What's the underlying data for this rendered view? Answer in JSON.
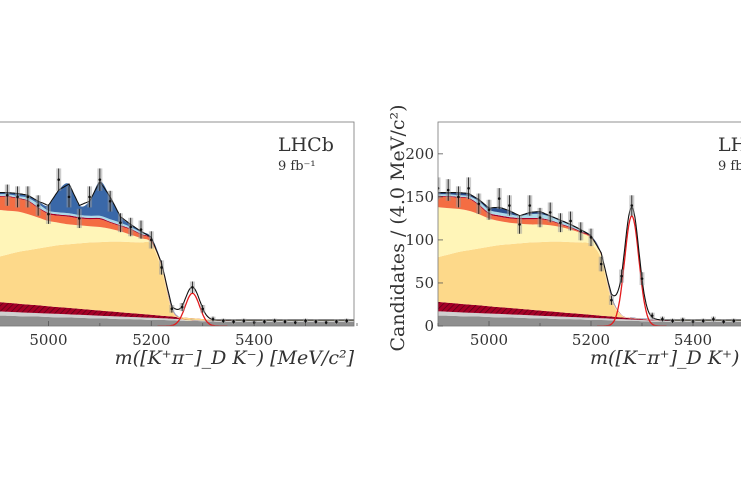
{
  "chart_data": [
    {
      "type": "area",
      "panel": "left",
      "experiment_label": "LHCb",
      "luminosity_label": "9 fb⁻¹",
      "xlabel": "m([K⁺π⁻]_D K⁻) [MeV/c²]",
      "ylabel": "",
      "xlim": [
        4900,
        5600
      ],
      "ylim": [
        0,
        237
      ],
      "xticks": [
        5000,
        5200,
        5400
      ],
      "yticks": [],
      "grid": false,
      "x": [
        4900,
        4920,
        4940,
        4960,
        4980,
        5000,
        5020,
        5040,
        5060,
        5080,
        5100,
        5120,
        5140,
        5160,
        5180,
        5200,
        5220,
        5240,
        5260,
        5280,
        5300,
        5320,
        5340,
        5360,
        5380,
        5400,
        5420,
        5440,
        5460,
        5480,
        5500,
        5520,
        5540,
        5560,
        5580,
        5600
      ],
      "components": [
        {
          "color": "#8f8f8f",
          "hatched": false,
          "top": [
            12,
            12,
            11.5,
            11,
            11,
            10.5,
            10,
            10,
            9.5,
            9,
            9,
            8.5,
            8,
            8,
            7.5,
            7,
            7,
            6.5,
            6,
            6,
            5.5,
            5,
            5,
            5,
            5,
            5,
            5,
            5,
            5,
            5,
            5,
            5,
            5,
            5,
            5,
            5
          ]
        },
        {
          "color": "#cfcfcf",
          "hatched": false,
          "top": [
            17,
            16.5,
            16,
            15.5,
            15,
            14.5,
            14,
            13.5,
            13,
            12.5,
            12,
            11.5,
            11,
            10.5,
            10,
            9.5,
            9,
            8.5,
            8,
            7.5,
            7,
            6.5,
            6,
            6,
            6,
            6,
            6,
            6,
            6,
            6,
            6,
            6,
            6,
            6,
            6,
            6
          ]
        },
        {
          "color": "#a50026",
          "hatched": true,
          "top": [
            28,
            27,
            26,
            25,
            24,
            23,
            22,
            21,
            20,
            19,
            18,
            17,
            16,
            15,
            14,
            13,
            12,
            11,
            10,
            9,
            8,
            7,
            6.5,
            6.2,
            6.2,
            6.2,
            6.2,
            6.2,
            6.2,
            6.2,
            6.2,
            6.2,
            6.2,
            6.2,
            6.2,
            6.2
          ]
        },
        {
          "color": "#fdd98a",
          "hatched": false,
          "top": [
            80,
            83,
            86,
            88,
            90,
            92,
            94,
            95,
            96,
            97,
            97.5,
            98,
            98,
            97.5,
            97,
            95,
            66,
            18,
            8,
            6.5,
            6.3,
            6.3,
            6.3,
            6.3,
            6.3,
            6.3,
            6.3,
            6.3,
            6.3,
            6.3,
            6.3,
            6.3,
            6.3,
            6.3,
            6.3,
            6.3
          ]
        },
        {
          "color": "#fff5b8",
          "hatched": false,
          "top": [
            135,
            134,
            133,
            130,
            126,
            122,
            120,
            118,
            117,
            116,
            115,
            113,
            110,
            106,
            102,
            97,
            69,
            19,
            8.5,
            6.7,
            6.5,
            6.4,
            6.4,
            6.4,
            6.4,
            6.4,
            6.4,
            6.4,
            6.4,
            6.4,
            6.4,
            6.4,
            6.4,
            6.4,
            6.4,
            6.4
          ]
        },
        {
          "color": "#f46d43",
          "hatched": false,
          "top": [
            150,
            150,
            148,
            145,
            137,
            130,
            128,
            127,
            125,
            124,
            124,
            120,
            116,
            112,
            106,
            100,
            71,
            20,
            8.8,
            6.9,
            6.6,
            6.5,
            6.5,
            6.5,
            6.5,
            6.5,
            6.5,
            6.5,
            6.5,
            6.5,
            6.5,
            6.5,
            6.5,
            6.5,
            6.5,
            6.5
          ]
        },
        {
          "color": "#a50026",
          "hatched": false,
          "top": [
            151,
            151,
            149,
            146,
            138,
            131.5,
            129.5,
            128.5,
            126.5,
            125.5,
            125.5,
            121,
            117,
            113,
            107,
            101,
            71.5,
            20.3,
            8.9,
            7,
            6.7,
            6.6,
            6.6,
            6.6,
            6.6,
            6.6,
            6.6,
            6.6,
            6.6,
            6.6,
            6.6,
            6.6,
            6.6,
            6.6,
            6.6,
            6.6
          ]
        },
        {
          "color": "#abd9e9",
          "hatched": false,
          "top": [
            153,
            153,
            151,
            149,
            142,
            134,
            132,
            131,
            129,
            128,
            128,
            124,
            120,
            115,
            109,
            102,
            72,
            21,
            9,
            7.1,
            6.8,
            6.7,
            6.7,
            6.7,
            6.7,
            6.7,
            6.7,
            6.7,
            6.7,
            6.7,
            6.7,
            6.7,
            6.7,
            6.7,
            6.7,
            6.7
          ]
        },
        {
          "color": "#3a68a8",
          "hatched": false,
          "top": [
            155,
            155,
            154,
            152,
            145,
            140,
            158,
            165,
            140,
            145,
            168,
            150,
            127,
            118,
            110,
            103,
            73,
            22,
            9,
            7,
            6.9,
            6.8,
            6.8,
            6.8,
            6.8,
            6.8,
            6.8,
            6.8,
            6.8,
            6.8,
            6.8,
            6.8,
            6.8,
            6.8,
            6.8,
            6.8
          ]
        }
      ],
      "signal": {
        "color": "#e31a1c",
        "mean": 5280,
        "sigma": 14,
        "peak": 38
      },
      "data_points": [
        158,
        152,
        150,
        150,
        140,
        130,
        170,
        150,
        125,
        150,
        170,
        145,
        120,
        115,
        112,
        100,
        68,
        20,
        22,
        45,
        20,
        8,
        6,
        5,
        6,
        4,
        5,
        6,
        5,
        4,
        6,
        5,
        4,
        5,
        6,
        5
      ]
    },
    {
      "type": "area",
      "panel": "right",
      "experiment_label": "LH",
      "luminosity_label": "9 fb",
      "xlabel": "m([K⁻π⁺]_D K⁺) [M",
      "ylabel": "Candidates / (4.0 MeV/c²)",
      "xlim": [
        4900,
        5600
      ],
      "ylim": [
        0,
        237
      ],
      "xticks": [
        5000,
        5200,
        5400
      ],
      "yticks": [
        0,
        50,
        100,
        150,
        200
      ],
      "grid": false,
      "x": [
        4900,
        4920,
        4940,
        4960,
        4980,
        5000,
        5020,
        5040,
        5060,
        5080,
        5100,
        5120,
        5140,
        5160,
        5180,
        5200,
        5220,
        5240,
        5260,
        5280,
        5300,
        5320,
        5340,
        5360,
        5380,
        5400,
        5420,
        5440,
        5460,
        5480,
        5500,
        5520,
        5540,
        5560,
        5580,
        5600
      ],
      "components": [
        {
          "color": "#8f8f8f",
          "hatched": false,
          "top": [
            12,
            12,
            11.5,
            11,
            11,
            10.5,
            10,
            10,
            9.5,
            9,
            9,
            8.5,
            8,
            8,
            7.5,
            7,
            7,
            6.5,
            6,
            6,
            5.5,
            5,
            5,
            5,
            5,
            5,
            5,
            5,
            5,
            5,
            5,
            5,
            5,
            5,
            5,
            5
          ]
        },
        {
          "color": "#cfcfcf",
          "hatched": false,
          "top": [
            17,
            16.5,
            16,
            15.5,
            15,
            14.5,
            14,
            13.5,
            13,
            12.5,
            12,
            11.5,
            11,
            10.5,
            10,
            9.5,
            9,
            8.5,
            8,
            7.5,
            7,
            6.5,
            6,
            6,
            6,
            6,
            6,
            6,
            6,
            6,
            6,
            6,
            6,
            6,
            6,
            6
          ]
        },
        {
          "color": "#a50026",
          "hatched": true,
          "top": [
            28,
            27,
            26,
            25,
            24,
            23,
            22,
            21,
            20,
            19,
            18,
            17,
            16,
            15,
            14,
            13,
            12,
            11,
            10,
            9,
            8,
            7,
            6.5,
            6.2,
            6.2,
            6.2,
            6.2,
            6.2,
            6.2,
            6.2,
            6.2,
            6.2,
            6.2,
            6.2,
            6.2,
            6.2
          ]
        },
        {
          "color": "#fdd98a",
          "hatched": false,
          "top": [
            80,
            83,
            86,
            88,
            90,
            92,
            94,
            95,
            96,
            97,
            97.5,
            98,
            98,
            97.5,
            97,
            95,
            78,
            30,
            12,
            9,
            8,
            7,
            6.5,
            6.3,
            6.3,
            6.3,
            6.3,
            6.3,
            6.3,
            6.3,
            6.3,
            6.3,
            6.3,
            6.3,
            6.3,
            6.3
          ]
        },
        {
          "color": "#fff5b8",
          "hatched": false,
          "top": [
            138,
            137,
            136,
            134,
            130,
            125,
            122,
            120,
            119,
            118,
            118,
            117,
            115,
            112,
            108,
            102,
            82,
            32,
            12.5,
            9.3,
            8.2,
            7.2,
            6.7,
            6.4,
            6.4,
            6.4,
            6.4,
            6.4,
            6.4,
            6.4,
            6.4,
            6.4,
            6.4,
            6.4,
            6.4,
            6.4
          ]
        },
        {
          "color": "#f46d43",
          "hatched": false,
          "top": [
            150,
            150,
            149,
            148,
            140,
            130,
            127,
            125,
            124,
            124,
            124,
            122,
            118,
            114,
            109,
            103,
            83,
            33,
            12.8,
            9.5,
            8.4,
            7.4,
            6.8,
            6.5,
            6.5,
            6.5,
            6.5,
            6.5,
            6.5,
            6.5,
            6.5,
            6.5,
            6.5,
            6.5,
            6.5,
            6.5
          ]
        },
        {
          "color": "#a50026",
          "hatched": false,
          "top": [
            151,
            151,
            150,
            149,
            141.5,
            131.5,
            128.5,
            126.5,
            125.5,
            125.5,
            125.5,
            123,
            119,
            115,
            110,
            104,
            83.5,
            33.3,
            12.9,
            9.6,
            8.5,
            7.5,
            6.9,
            6.6,
            6.6,
            6.6,
            6.6,
            6.6,
            6.6,
            6.6,
            6.6,
            6.6,
            6.6,
            6.6,
            6.6,
            6.6
          ]
        },
        {
          "color": "#abd9e9",
          "hatched": false,
          "top": [
            153,
            153,
            152,
            151,
            145,
            135,
            132,
            130,
            128,
            130,
            130,
            127,
            122,
            117,
            111,
            104,
            84,
            34,
            13,
            9.8,
            8.7,
            7.7,
            7,
            6.7,
            6.7,
            6.7,
            6.7,
            6.7,
            6.7,
            6.7,
            6.7,
            6.7,
            6.7,
            6.7,
            6.7,
            6.7
          ]
        },
        {
          "color": "#2c4f8f",
          "hatched": false,
          "top": [
            155,
            155,
            155,
            154,
            147,
            137,
            138,
            134,
            128,
            132,
            133,
            128,
            123,
            118,
            112,
            105,
            85,
            35,
            13,
            10,
            9,
            8,
            7,
            6.8,
            6.8,
            6.8,
            6.8,
            6.8,
            6.8,
            6.8,
            6.8,
            6.8,
            6.8,
            6.8,
            6.8,
            6.8
          ]
        }
      ],
      "signal": {
        "color": "#e31a1c",
        "mean": 5280,
        "sigma": 14,
        "peak": 128
      },
      "data_points": [
        160,
        158,
        150,
        160,
        142,
        135,
        148,
        140,
        118,
        140,
        126,
        132,
        120,
        122,
        110,
        103,
        72,
        30,
        58,
        140,
        55,
        12,
        8,
        6,
        7,
        5,
        6,
        8,
        5,
        6,
        4,
        6,
        5,
        7,
        5,
        6
      ]
    }
  ]
}
